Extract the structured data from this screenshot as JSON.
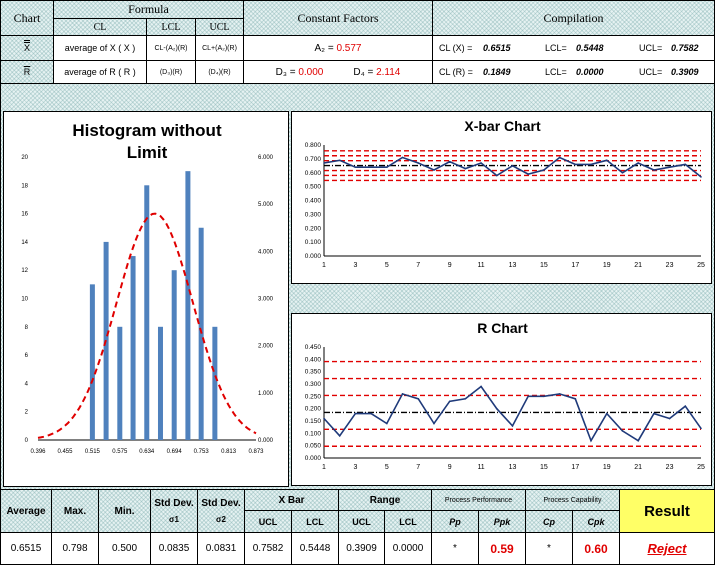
{
  "header": {
    "chart": "Chart",
    "formula": "Formula",
    "cl": "CL",
    "lcl": "LCL",
    "ucl": "UCL",
    "constant_factors": "Constant Factors",
    "compilation": "Compilation"
  },
  "row_x": {
    "symbol": "X",
    "cl_formula": "average of X ( X )",
    "lcl_formula": "CL-(A₂)(R)",
    "ucl_formula": "CL+(A₂)(R)",
    "a2_label": "A₂ =",
    "a2_value": "0.577",
    "cl_label": "CL (X) =",
    "cl_value": "0.6515",
    "lcl_label": "LCL=",
    "lcl_value": "0.5448",
    "ucl_label": "UCL=",
    "ucl_value": "0.7582"
  },
  "row_r": {
    "symbol": "R",
    "cl_formula": "average of R ( R )",
    "lcl_formula": "(D₃)(R)",
    "ucl_formula": "(D₄)(R)",
    "d3_label": "D₃ =",
    "d3_value": "0.000",
    "d4_label": "D₄ =",
    "d4_value": "2.114",
    "cl_label": "CL (R) =",
    "cl_value": "0.1849",
    "lcl_label": "LCL=",
    "lcl_value": "0.0000",
    "ucl_label": "UCL=",
    "ucl_value": "0.3909"
  },
  "charts": {
    "histogram_title_line1": "Histogram without",
    "histogram_title_line2": "Limit",
    "xbar_title": "X-bar Chart",
    "r_title": "R Chart"
  },
  "summary": {
    "average_label": "Average",
    "max_label": "Max.",
    "min_label": "Min.",
    "std1_label": "Std Dev.",
    "std1_sub": "σ1",
    "std2_label": "Std Dev.",
    "std2_sub": "σ2",
    "xbar_label": "X Bar",
    "range_label": "Range",
    "ucl": "UCL",
    "lcl": "LCL",
    "pp_group": "Process Performance",
    "cp_group": "Process Capability",
    "pp": "Pp",
    "ppk": "Ppk",
    "cp": "Cp",
    "cpk": "Cpk",
    "result_label": "Result",
    "average": "0.6515",
    "max": "0.798",
    "min": "0.500",
    "std1": "0.0835",
    "std2": "0.0831",
    "xbar_ucl": "0.7582",
    "xbar_lcl": "0.5448",
    "range_ucl": "0.3909",
    "range_lcl": "0.0000",
    "pp_value": "*",
    "ppk_value": "0.59",
    "cp_value": "*",
    "cpk_value": "0.60",
    "result": "Reject"
  },
  "colors": {
    "hatch": "#e6f2f2",
    "result_bg": "#ffff66",
    "red": "#e00000",
    "bar": "#4f81bd",
    "line": "#1f3a7a"
  },
  "chart_data": [
    {
      "type": "bar",
      "title": "Histogram without Limit",
      "x_ticks": [
        "0.396",
        "0.455",
        "0.515",
        "0.575",
        "0.634",
        "0.694",
        "0.753",
        "0.813",
        "0.873"
      ],
      "left_axis_ticks": [
        0,
        2,
        4,
        6,
        8,
        10,
        12,
        14,
        16,
        18,
        20
      ],
      "right_axis_ticks": [
        "0.000",
        "1.000",
        "2.000",
        "3.000",
        "4.000",
        "5.000",
        "6.000"
      ],
      "ylim": [
        0,
        20
      ],
      "y2lim": [
        0,
        6
      ],
      "bar_x": [
        0.515,
        0.545,
        0.575,
        0.604,
        0.634,
        0.664,
        0.694,
        0.724,
        0.753,
        0.783
      ],
      "bar_values": [
        11,
        14,
        8,
        13,
        18,
        8,
        12,
        19,
        15,
        8
      ],
      "curve": {
        "mean": 0.6515,
        "sd": 0.0835,
        "peak": 4.8
      }
    },
    {
      "type": "line",
      "title": "X-bar Chart",
      "x_ticks": [
        1,
        3,
        5,
        7,
        9,
        11,
        13,
        15,
        17,
        19,
        21,
        23,
        25
      ],
      "y_ticks": [
        "0.000",
        "0.100",
        "0.200",
        "0.300",
        "0.400",
        "0.500",
        "0.600",
        "0.700",
        "0.800"
      ],
      "ylim": [
        0,
        0.8
      ],
      "values": [
        0.67,
        0.69,
        0.64,
        0.64,
        0.64,
        0.71,
        0.67,
        0.62,
        0.68,
        0.63,
        0.67,
        0.58,
        0.65,
        0.59,
        0.62,
        0.71,
        0.66,
        0.66,
        0.69,
        0.6,
        0.67,
        0.62,
        0.64,
        0.66,
        0.57
      ],
      "center_line": 0.6515,
      "limit_lines": [
        0.7582,
        0.7226,
        0.6871,
        0.6159,
        0.5804,
        0.5448
      ]
    },
    {
      "type": "line",
      "title": "R Chart",
      "x_ticks": [
        1,
        3,
        5,
        7,
        9,
        11,
        13,
        15,
        17,
        19,
        21,
        23,
        25
      ],
      "y_ticks": [
        "0.000",
        "0.050",
        "0.100",
        "0.150",
        "0.200",
        "0.250",
        "0.300",
        "0.350",
        "0.400",
        "0.450"
      ],
      "ylim": [
        0,
        0.45
      ],
      "values": [
        0.16,
        0.09,
        0.18,
        0.18,
        0.14,
        0.26,
        0.24,
        0.14,
        0.23,
        0.24,
        0.29,
        0.2,
        0.13,
        0.25,
        0.25,
        0.26,
        0.24,
        0.07,
        0.18,
        0.11,
        0.07,
        0.18,
        0.16,
        0.21,
        0.12
      ],
      "center_line": 0.1849,
      "limit_lines": [
        0.3909,
        0.3222,
        0.2536,
        0.1163,
        0.0476
      ]
    }
  ]
}
